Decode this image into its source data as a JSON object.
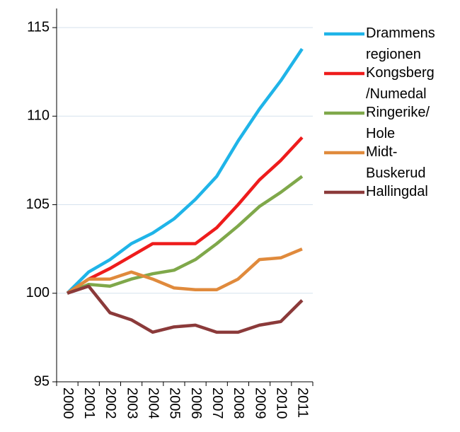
{
  "chart_data": {
    "type": "line",
    "categories": [
      "2000",
      "2001",
      "2002",
      "2003",
      "2004",
      "2005",
      "2006",
      "2007",
      "2008",
      "2009",
      "2010",
      "2011"
    ],
    "series": [
      {
        "name": "Drammens regionen",
        "color": "#1fb4e8",
        "values": [
          100,
          101.2,
          101.9,
          102.8,
          103.4,
          104.2,
          105.3,
          106.6,
          108.6,
          110.4,
          112.0,
          113.8
        ]
      },
      {
        "name": "Kongsberg /Numedal",
        "color": "#ee1c1c",
        "values": [
          100,
          100.8,
          101.4,
          102.1,
          102.8,
          102.8,
          102.8,
          103.7,
          105.0,
          106.4,
          107.5,
          108.8
        ]
      },
      {
        "name": "Ringerike/ Hole",
        "color": "#7fa84a",
        "values": [
          100,
          100.5,
          100.4,
          100.8,
          101.1,
          101.3,
          101.9,
          102.8,
          103.8,
          104.9,
          105.7,
          106.6
        ]
      },
      {
        "name": "Midt- Buskerud",
        "color": "#e08a3c",
        "values": [
          100,
          100.8,
          100.8,
          101.2,
          100.8,
          100.3,
          100.2,
          100.2,
          100.8,
          101.9,
          102.0,
          102.5
        ]
      },
      {
        "name": "Hallingdal",
        "color": "#8b3a3a",
        "values": [
          100,
          100.4,
          98.9,
          98.5,
          97.8,
          98.1,
          98.2,
          97.8,
          97.8,
          98.2,
          98.4,
          99.6
        ]
      }
    ],
    "ylim": [
      95,
      116
    ],
    "yticks": [
      95,
      100,
      105,
      110,
      115
    ],
    "grid": true,
    "legend": "right"
  }
}
